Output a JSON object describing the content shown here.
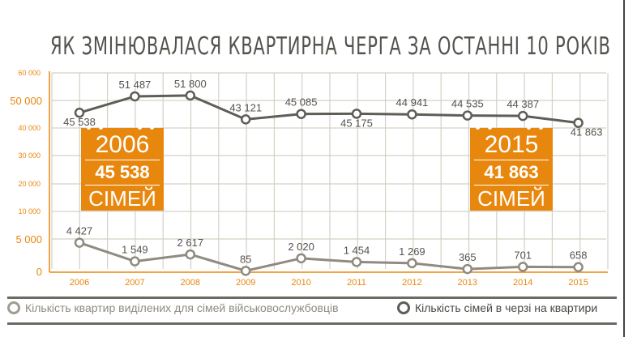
{
  "chart_data": {
    "type": "line",
    "title": "ЯК ЗМІНЮВАЛАСЯ КВАРТИРНА ЧЕРГА ЗА ОСТАННІ 10 РОКІВ",
    "categories": [
      "2006",
      "2007",
      "2008",
      "2009",
      "2010",
      "2011",
      "2012",
      "2013",
      "2014",
      "2015"
    ],
    "y_ticks": [
      "60 000",
      "50 000",
      "40 000",
      "30 000",
      "20 000",
      "10 000",
      "5 000",
      "0"
    ],
    "y_tick_values": [
      60000,
      50000,
      40000,
      30000,
      20000,
      10000,
      5000,
      0
    ],
    "ylim": [
      0,
      60000
    ],
    "grid": true,
    "series": [
      {
        "name": "Кількість сімей в черзі на квартири",
        "color": "#5e5d57",
        "values": [
          45538,
          51487,
          51800,
          43121,
          45085,
          45175,
          44941,
          44535,
          44387,
          41863
        ],
        "labels": [
          "45 538",
          "51 487",
          "51 800",
          "43 121",
          "45 085",
          "45 175",
          "44 941",
          "44 535",
          "44 387",
          "41 863"
        ]
      },
      {
        "name": "Кількість квартир виділених для сімей військовослужбовців",
        "color": "#8f8b80",
        "values": [
          4427,
          1549,
          2617,
          85,
          2020,
          1454,
          1269,
          365,
          701,
          658
        ],
        "labels": [
          "4 427",
          "1 549",
          "2 617",
          "85",
          "2 020",
          "1 454",
          "1 269",
          "365",
          "701",
          "658"
        ]
      }
    ],
    "legend_position": "bottom"
  },
  "callouts": [
    {
      "year": "2006",
      "value": "45 538",
      "unit": "СІМЕЙ"
    },
    {
      "year": "2015",
      "value": "41 863",
      "unit": "СІМЕЙ"
    }
  ],
  "colors": {
    "accent": "#e8870e",
    "grid": "#d4d0c4"
  }
}
